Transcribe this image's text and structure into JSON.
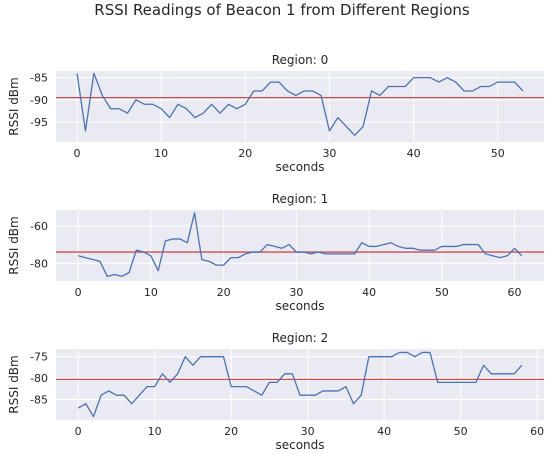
{
  "figure": {
    "title": "RSSI Readings of Beacon 1 from Different Regions"
  },
  "chart_data": [
    {
      "type": "line",
      "title": "Region: 0",
      "xlabel": "seconds",
      "ylabel": "RSSI dBm",
      "xlim": [
        -2.5,
        55.5
      ],
      "ylim": [
        -99.5,
        -83.5
      ],
      "xticks": [
        0,
        10,
        20,
        30,
        40,
        50
      ],
      "yticks": [
        -85,
        -90,
        -95
      ],
      "grid": true,
      "x": [
        0,
        1,
        2,
        3,
        4,
        5,
        6,
        7,
        8,
        9,
        10,
        11,
        12,
        13,
        14,
        15,
        16,
        17,
        18,
        19,
        20,
        21,
        22,
        23,
        24,
        25,
        26,
        27,
        28,
        29,
        30,
        31,
        32,
        33,
        34,
        35,
        36,
        37,
        38,
        39,
        40,
        41,
        42,
        43,
        44,
        45,
        46,
        47,
        48,
        49,
        50,
        51,
        52,
        53
      ],
      "series": [
        {
          "values": [
            -84,
            -97,
            -84,
            -89,
            -92,
            -92,
            -93,
            -90,
            -91,
            -91,
            -92,
            -94,
            -91,
            -92,
            -94,
            -93,
            -91,
            -93,
            -91,
            -92,
            -91,
            -88,
            -88,
            -86,
            -86,
            -88,
            -89,
            -88,
            -88,
            -89,
            -97,
            -94,
            -96,
            -98,
            -96,
            -88,
            -89,
            -87,
            -87,
            -87,
            -85,
            -85,
            -85,
            -86,
            -85,
            -86,
            -88,
            -88,
            -87,
            -87,
            -86,
            -86,
            -86,
            -88
          ],
          "color": "#4c72b0"
        }
      ],
      "hlines": [
        {
          "y": -89.5,
          "color": "#c44e52"
        }
      ]
    },
    {
      "type": "line",
      "title": "Region: 1",
      "xlabel": "seconds",
      "ylabel": "RSSI dBm",
      "xlim": [
        -3.05,
        64.05
      ],
      "ylim": [
        -89.5,
        -51.5
      ],
      "xticks": [
        0,
        10,
        20,
        30,
        40,
        50,
        60
      ],
      "yticks": [
        -60,
        -80
      ],
      "grid": true,
      "x": [
        0,
        1,
        2,
        3,
        4,
        5,
        6,
        7,
        8,
        9,
        10,
        11,
        12,
        13,
        14,
        15,
        16,
        17,
        18,
        19,
        20,
        21,
        22,
        23,
        24,
        25,
        26,
        27,
        28,
        29,
        30,
        31,
        32,
        33,
        34,
        35,
        36,
        37,
        38,
        39,
        40,
        41,
        42,
        43,
        44,
        45,
        46,
        47,
        48,
        49,
        50,
        51,
        52,
        53,
        54,
        55,
        56,
        57,
        58,
        59,
        60,
        61
      ],
      "series": [
        {
          "values": [
            -76,
            -77,
            -78,
            -79,
            -87,
            -86,
            -87,
            -85,
            -73,
            -74,
            -76,
            -84,
            -68,
            -67,
            -67,
            -69,
            -53,
            -78,
            -79,
            -81,
            -81,
            -77,
            -77,
            -75,
            -74,
            -74,
            -70,
            -71,
            -72,
            -70,
            -74,
            -74,
            -75,
            -74,
            -75,
            -75,
            -75,
            -75,
            -75,
            -69,
            -71,
            -71,
            -70,
            -69,
            -71,
            -72,
            -72,
            -73,
            -73,
            -73,
            -71,
            -71,
            -71,
            -70,
            -70,
            -70,
            -75,
            -76,
            -77,
            -76,
            -72,
            -76
          ],
          "color": "#4c72b0"
        }
      ],
      "hlines": [
        {
          "y": -74,
          "color": "#c44e52"
        }
      ]
    },
    {
      "type": "line",
      "title": "Region: 2",
      "xlabel": "seconds",
      "ylabel": "RSSI dBm",
      "xlim": [
        -2.9,
        60.9
      ],
      "ylim": [
        -89.8,
        -73.2
      ],
      "xticks": [
        0,
        10,
        20,
        30,
        40,
        50,
        60
      ],
      "yticks": [
        -75,
        -80,
        -85
      ],
      "grid": true,
      "x": [
        0,
        1,
        2,
        3,
        4,
        5,
        6,
        7,
        8,
        9,
        10,
        11,
        12,
        13,
        14,
        15,
        16,
        17,
        18,
        19,
        20,
        21,
        22,
        23,
        24,
        25,
        26,
        27,
        28,
        29,
        30,
        31,
        32,
        33,
        34,
        35,
        36,
        37,
        38,
        39,
        40,
        41,
        42,
        43,
        44,
        45,
        46,
        47,
        48,
        49,
        50,
        51,
        52,
        53,
        54,
        55,
        56,
        57,
        58
      ],
      "series": [
        {
          "values": [
            -87,
            -86,
            -89,
            -84,
            -83,
            -84,
            -84,
            -86,
            -84,
            -82,
            -82,
            -79,
            -81,
            -79,
            -75,
            -77,
            -75,
            -75,
            -75,
            -75,
            -82,
            -82,
            -82,
            -83,
            -84,
            -81,
            -81,
            -79,
            -79,
            -84,
            -84,
            -84,
            -83,
            -83,
            -83,
            -82,
            -86,
            -84,
            -75,
            -75,
            -75,
            -75,
            -74,
            -74,
            -75,
            -74,
            -74,
            -81,
            -81,
            -81,
            -81,
            -81,
            -81,
            -77,
            -79,
            -79,
            -79,
            -79,
            -77
          ],
          "color": "#4c72b0"
        }
      ],
      "hlines": [
        {
          "y": -80.3,
          "color": "#c44e52"
        }
      ]
    }
  ]
}
